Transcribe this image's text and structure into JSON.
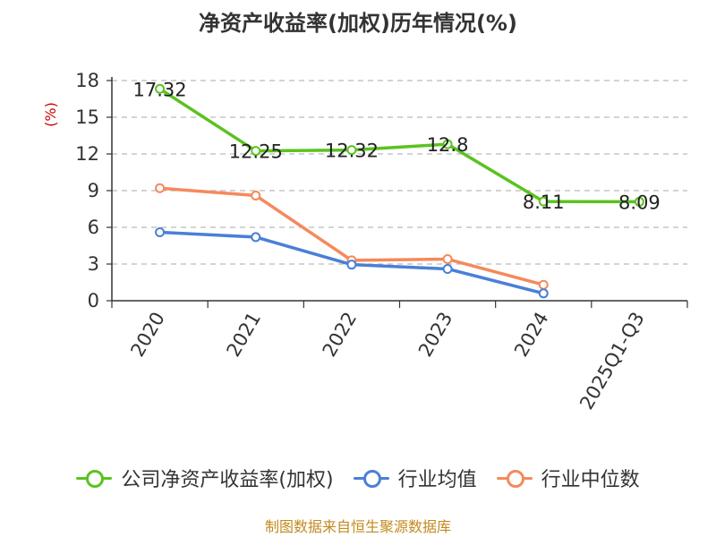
{
  "title": "净资产收益率(加权)历年情况(%)",
  "source_note": "制图数据来自恒生聚源数据库",
  "chart_data": {
    "type": "line",
    "title": "净资产收益率(加权)历年情况(%)",
    "xlabel": "",
    "ylabel": "(%)",
    "categories": [
      "2020",
      "2021",
      "2022",
      "2023",
      "2024",
      "2025Q1-Q3"
    ],
    "ylim": [
      0,
      18
    ],
    "yticks": [
      0,
      3,
      6,
      9,
      12,
      15,
      18
    ],
    "grid": true,
    "legend_position": "bottom",
    "series": [
      {
        "name": "公司净资产收益率(加权)",
        "color": "#5ac31f",
        "values": [
          17.32,
          12.25,
          12.32,
          12.8,
          8.11,
          8.09
        ],
        "labels": [
          "17.32",
          "12.25",
          "12.32",
          "12.8",
          "8.11",
          "8.09"
        ]
      },
      {
        "name": "行业均值",
        "color": "#4a7fd8",
        "values": [
          5.6,
          5.2,
          2.95,
          2.6,
          0.6,
          null
        ],
        "labels": []
      },
      {
        "name": "行业中位数",
        "color": "#f5895b",
        "values": [
          9.2,
          8.6,
          3.3,
          3.4,
          1.3,
          null
        ],
        "labels": []
      }
    ]
  }
}
